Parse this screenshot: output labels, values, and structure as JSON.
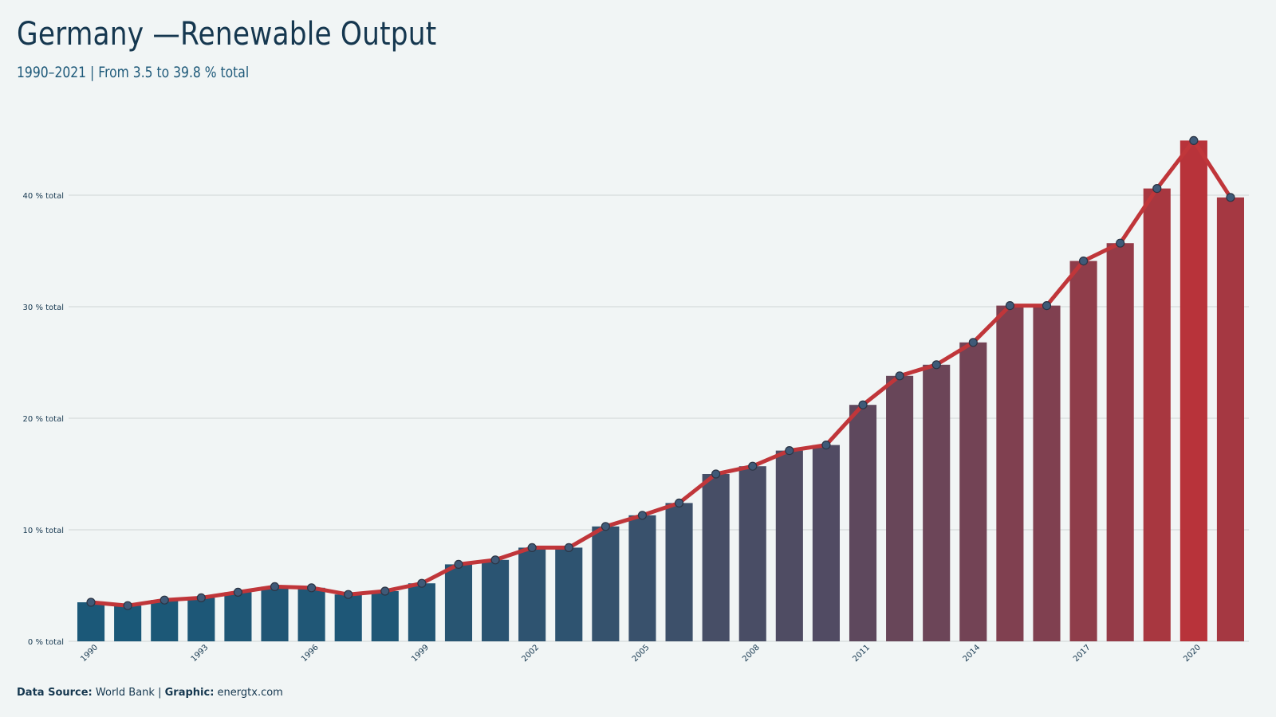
{
  "title": "Germany —Renewable Output",
  "subtitle": "1990–2021 | From 3.5 to 39.8 % total",
  "footer": {
    "source_label": "Data Source:",
    "source_value": "World Bank",
    "separator": "|",
    "graphic_label": "Graphic:",
    "graphic_value": "energtx.com"
  },
  "colors": {
    "background": "#f1f5f5",
    "bar_start": "#1a5878",
    "bar_end": "#b8333a",
    "line": "#c0363a",
    "marker_fill": "#3f5a78",
    "marker_stroke": "#2b3444",
    "grid": "#d5dcdc",
    "text": "#15374f"
  },
  "chart_data": {
    "type": "bar",
    "overlay": "line",
    "x": [
      1990,
      1991,
      1992,
      1993,
      1994,
      1995,
      1996,
      1997,
      1998,
      1999,
      2000,
      2001,
      2002,
      2003,
      2004,
      2005,
      2006,
      2007,
      2008,
      2009,
      2010,
      2011,
      2012,
      2013,
      2014,
      2015,
      2016,
      2017,
      2018,
      2019,
      2020,
      2021
    ],
    "values": [
      3.5,
      3.2,
      3.7,
      3.9,
      4.4,
      4.9,
      4.8,
      4.2,
      4.5,
      5.2,
      6.9,
      7.3,
      8.4,
      8.4,
      10.3,
      11.3,
      12.4,
      15.0,
      15.7,
      17.1,
      17.6,
      21.2,
      23.8,
      24.8,
      26.8,
      30.1,
      30.1,
      34.1,
      35.7,
      40.6,
      44.9,
      39.8
    ],
    "y_ticks": [
      0,
      10,
      20,
      30,
      40
    ],
    "y_tick_labels": [
      "0 % total",
      "10 % total",
      "20 % total",
      "30 % total",
      "40 % total"
    ],
    "x_tick_labels": [
      "1990",
      "1993",
      "1996",
      "1999",
      "2002",
      "2005",
      "2008",
      "2011",
      "2014",
      "2017",
      "2020"
    ],
    "ylim": [
      0,
      48
    ],
    "grid": "horizontal",
    "xlabel": "",
    "ylabel": ""
  }
}
